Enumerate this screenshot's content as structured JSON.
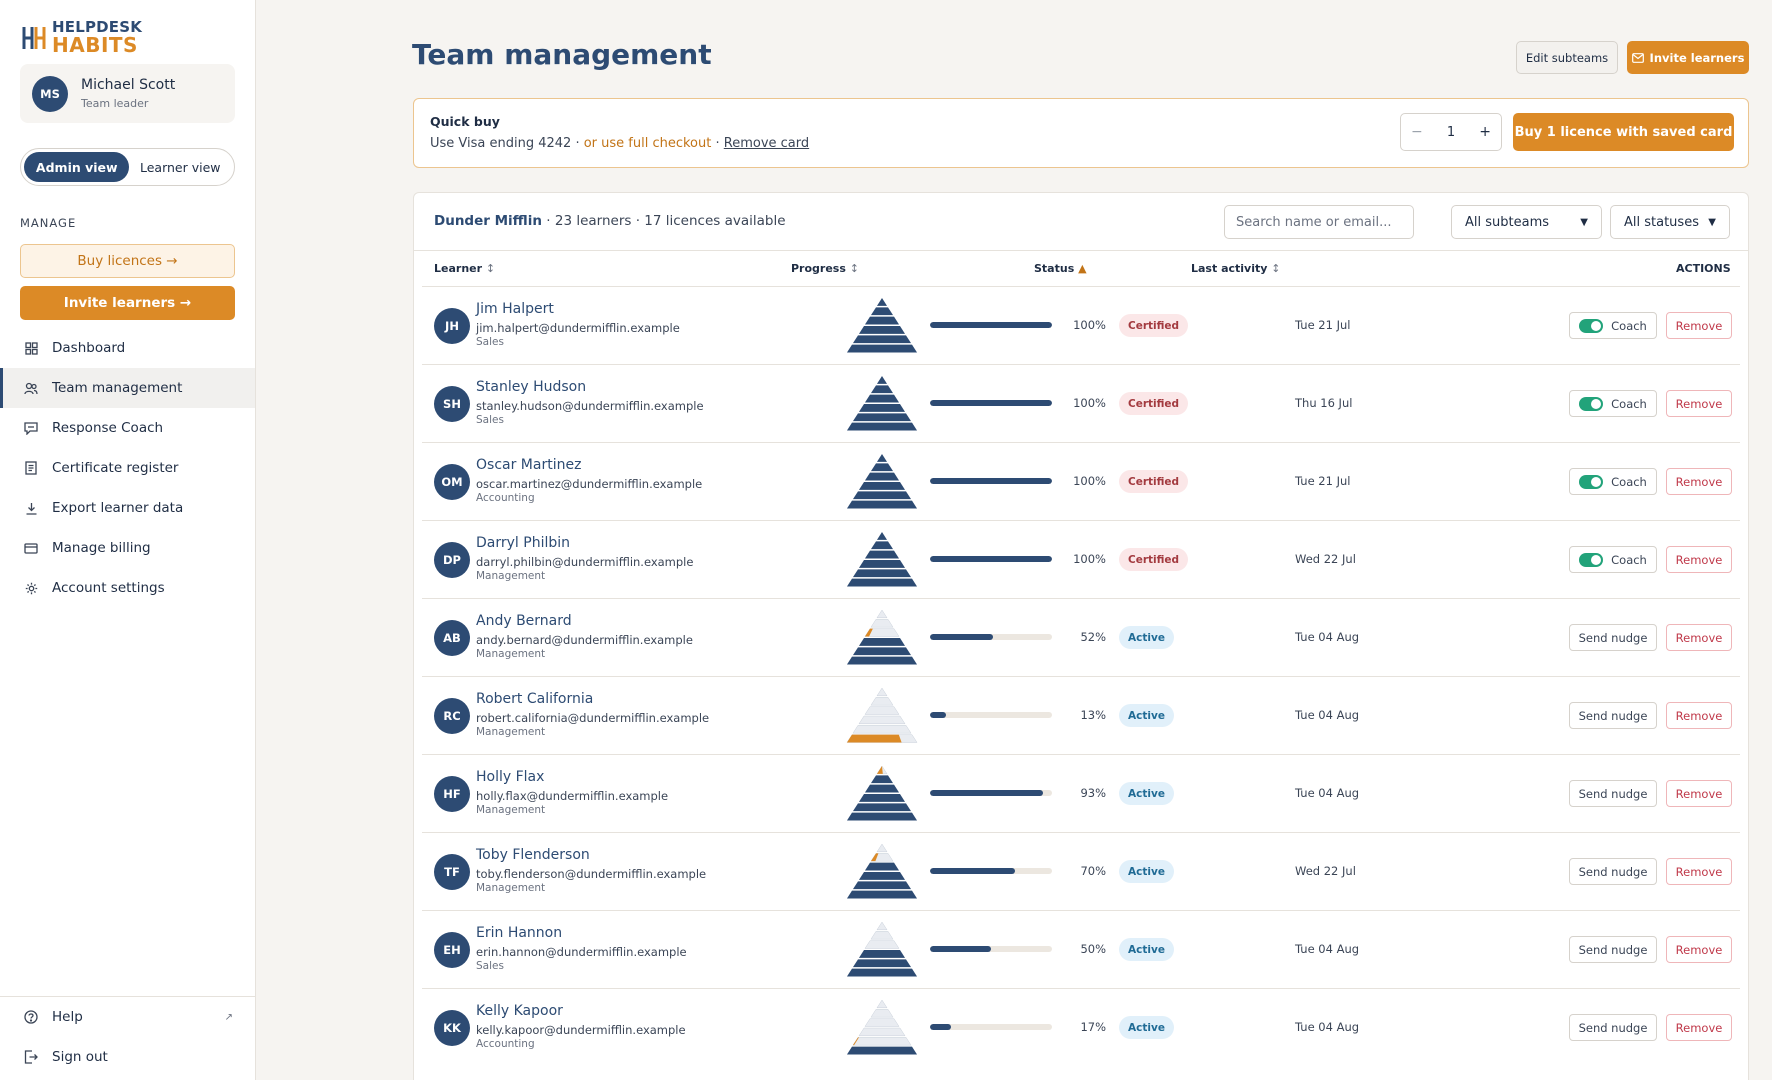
{
  "brand": {
    "line1": "HELPDESK",
    "line2": "HABITS",
    "accent": "#dc8a26",
    "primary": "#2d4b73"
  },
  "user": {
    "initials": "MS",
    "name": "Michael Scott",
    "role": "Team leader"
  },
  "view_toggle": {
    "admin": "Admin view",
    "learner": "Learner view",
    "selected": "Admin view"
  },
  "sidebar": {
    "section_label": "MANAGE",
    "buy_licences": "Buy licences →",
    "invite_learners": "Invite learners →",
    "nav": [
      {
        "label": "Dashboard",
        "icon": "grid-icon",
        "active": false
      },
      {
        "label": "Team management",
        "icon": "users-icon",
        "active": true
      },
      {
        "label": "Response Coach",
        "icon": "chat-icon",
        "active": false
      },
      {
        "label": "Certificate register",
        "icon": "document-icon",
        "active": false
      },
      {
        "label": "Export learner data",
        "icon": "download-icon",
        "active": false
      },
      {
        "label": "Manage billing",
        "icon": "card-icon",
        "active": false
      },
      {
        "label": "Account settings",
        "icon": "gear-icon",
        "active": false
      }
    ],
    "help": "Help",
    "sign_out": "Sign out"
  },
  "page": {
    "title": "Team management",
    "edit_subteams": "Edit subteams",
    "invite_learners": "Invite learners"
  },
  "quick_buy": {
    "title": "Quick buy",
    "card_text": "Use Visa ending 4242 · ",
    "full_checkout": "or use full checkout",
    "sep": " · ",
    "remove_card": "Remove card",
    "quantity": "1",
    "minus": "−",
    "plus": "+",
    "buy_button": "Buy 1 licence with saved card"
  },
  "team": {
    "org": "Dunder Mifflin",
    "summary": " · 23 learners · 17 licences available",
    "search_placeholder": "Search name or email...",
    "subteam_filter": "All subteams",
    "status_filter": "All statuses"
  },
  "table": {
    "headers": {
      "learner": "Learner",
      "progress": "Progress",
      "status": "Status",
      "last_activity": "Last activity",
      "actions": "ACTIONS"
    },
    "coach_label": "Coach",
    "nudge_label": "Send nudge",
    "remove_label": "Remove",
    "rows": [
      {
        "initials": "JH",
        "name": "Jim Halpert",
        "email": "jim.halpert@dundermifflin.example",
        "team": "Sales",
        "progress": 100,
        "pct": "100%",
        "status": "Certified",
        "last": "Tue 21 Jul",
        "action": "coach"
      },
      {
        "initials": "SH",
        "name": "Stanley Hudson",
        "email": "stanley.hudson@dundermifflin.example",
        "team": "Sales",
        "progress": 100,
        "pct": "100%",
        "status": "Certified",
        "last": "Thu 16 Jul",
        "action": "coach"
      },
      {
        "initials": "OM",
        "name": "Oscar Martinez",
        "email": "oscar.martinez@dundermifflin.example",
        "team": "Accounting",
        "progress": 100,
        "pct": "100%",
        "status": "Certified",
        "last": "Tue 21 Jul",
        "action": "coach"
      },
      {
        "initials": "DP",
        "name": "Darryl Philbin",
        "email": "darryl.philbin@dundermifflin.example",
        "team": "Management",
        "progress": 100,
        "pct": "100%",
        "status": "Certified",
        "last": "Wed 22 Jul",
        "action": "coach"
      },
      {
        "initials": "AB",
        "name": "Andy Bernard",
        "email": "andy.bernard@dundermifflin.example",
        "team": "Management",
        "progress": 52,
        "pct": "52%",
        "status": "Active",
        "last": "Tue 04 Aug",
        "action": "nudge"
      },
      {
        "initials": "RC",
        "name": "Robert California",
        "email": "robert.california@dundermifflin.example",
        "team": "Management",
        "progress": 13,
        "pct": "13%",
        "status": "Active",
        "last": "Tue 04 Aug",
        "action": "nudge"
      },
      {
        "initials": "HF",
        "name": "Holly Flax",
        "email": "holly.flax@dundermifflin.example",
        "team": "Management",
        "progress": 93,
        "pct": "93%",
        "status": "Active",
        "last": "Tue 04 Aug",
        "action": "nudge"
      },
      {
        "initials": "TF",
        "name": "Toby Flenderson",
        "email": "toby.flenderson@dundermifflin.example",
        "team": "Management",
        "progress": 70,
        "pct": "70%",
        "status": "Active",
        "last": "Wed 22 Jul",
        "action": "nudge"
      },
      {
        "initials": "EH",
        "name": "Erin Hannon",
        "email": "erin.hannon@dundermifflin.example",
        "team": "Sales",
        "progress": 50,
        "pct": "50%",
        "status": "Active",
        "last": "Tue 04 Aug",
        "action": "nudge"
      },
      {
        "initials": "KK",
        "name": "Kelly Kapoor",
        "email": "kelly.kapoor@dundermifflin.example",
        "team": "Accounting",
        "progress": 17,
        "pct": "17%",
        "status": "Active",
        "last": "Tue 04 Aug",
        "action": "nudge"
      }
    ]
  }
}
